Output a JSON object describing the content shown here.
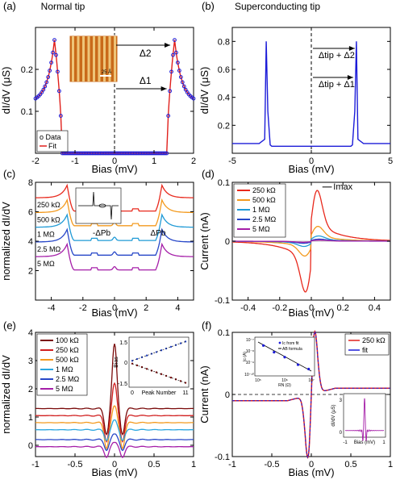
{
  "panels": [
    {
      "id": "a",
      "label": "(a)",
      "title": "Normal tip",
      "xlabel": "Bias (mV)",
      "ylabel": "dI/dV (μS)",
      "xticks": [
        "-2",
        "-1",
        "0",
        "1",
        "2"
      ],
      "yticks": [
        "0.1",
        "0.2"
      ],
      "legend": [
        "o Data",
        "Fit"
      ],
      "annotations": [
        "Δ2",
        "Δ1"
      ],
      "inset_labels": [
        "25 Å"
      ]
    },
    {
      "id": "b",
      "label": "(b)",
      "title": "Superconducting tip",
      "xlabel": "Bias (mV)",
      "ylabel": "dI/dV (μS)",
      "xticks": [
        "-5",
        "0",
        "5"
      ],
      "yticks": [
        "0.2",
        "0.4",
        "0.6",
        "0.8"
      ],
      "annotations": [
        "Δtip + Δ2",
        "Δtip + Δ1"
      ]
    },
    {
      "id": "c",
      "label": "(c)",
      "xlabel": "Bias (mV)",
      "ylabel": "normalized dI/dV",
      "xticks": [
        "-4",
        "-2",
        "0",
        "2",
        "4"
      ],
      "yticks": [
        "2",
        "4",
        "6",
        "8"
      ],
      "legend": [
        "250 kΩ",
        "500 kΩ",
        "1 MΩ",
        "2.5 MΩ",
        "5 MΩ"
      ],
      "annotations": [
        "-ΔPb",
        "ΔPb"
      ]
    },
    {
      "id": "d",
      "label": "(d)",
      "xlabel": "Bias (mV)",
      "ylabel": "Current (nA)",
      "xticks": [
        "-0.4",
        "-0.2",
        "0",
        "0.2",
        "0.4"
      ],
      "yticks": [
        "-0.1",
        "0",
        "0.1"
      ],
      "legend": [
        "250 kΩ",
        "500 kΩ",
        "1 MΩ",
        "2.5 MΩ",
        "5 MΩ"
      ],
      "annotations": [
        "Imax"
      ]
    },
    {
      "id": "e",
      "label": "(e)",
      "xlabel": "Bias (mV)",
      "ylabel": "normalized dI/dV",
      "xticks": [
        "-1",
        "-0.5",
        "0",
        "0.5",
        "1"
      ],
      "yticks": [
        "0",
        "1",
        "2",
        "3",
        "4"
      ],
      "legend": [
        "100 kΩ",
        "250 kΩ",
        "500 kΩ",
        "1 MΩ",
        "2.5 MΩ",
        "5 MΩ"
      ],
      "inset": {
        "xlabel": "Peak Number",
        "ylabel": "Bias",
        "xticks": [
          "0",
          "11"
        ],
        "yticks": [
          "1.5",
          "0",
          "-1.5"
        ]
      }
    },
    {
      "id": "f",
      "label": "(f)",
      "xlabel": "Bias (mV)",
      "ylabel": "Current (nA)",
      "xticks": [
        "-1",
        "-0.5",
        "0",
        "0.5",
        "1"
      ],
      "yticks": [
        "-0.1",
        "0",
        "0.1"
      ],
      "legend": [
        "250 kΩ",
        "fit"
      ],
      "inset1": {
        "xlabel": "RN (Ω)",
        "ylabel": "Ic (A)",
        "legend": [
          "Ic from fit",
          "AB formula"
        ],
        "xticks": [
          "10⁵",
          "10⁶",
          "10⁷"
        ],
        "yticks": [
          "10⁻⁷",
          "10⁻⁸",
          "10⁻⁹",
          "10⁻¹⁰"
        ]
      },
      "inset2": {
        "xlabel": "Bias (mV)",
        "ylabel": "dI/dV (μS)",
        "xticks": [
          "-1",
          "1"
        ],
        "yticks": [
          "3",
          "0"
        ]
      }
    }
  ],
  "colors": {
    "data_blue": "#1c1cd8",
    "fit_red": "#e0201c",
    "c_series": [
      "#e8281c",
      "#f39a1e",
      "#1f9ad6",
      "#2747c8",
      "#a51ea8"
    ],
    "d_series": [
      "#e8281c",
      "#f39a1e",
      "#1f9ad6",
      "#2747c8",
      "#a51ea8"
    ],
    "e_series": [
      "#7a0a0a",
      "#d11f1f",
      "#f39a1e",
      "#2aa6e0",
      "#2747c8",
      "#a51ea8"
    ]
  },
  "chart_data": [
    {
      "panel": "a",
      "type": "line",
      "x_range": [
        -2,
        2
      ],
      "ylim": [
        0,
        0.3
      ],
      "series": [
        {
          "name": "Data",
          "x": [
            -2,
            -1.9,
            -1.8,
            -1.7,
            -1.6,
            -1.52,
            -1.46,
            -1.4,
            -1.36,
            -1.34,
            -1.3,
            -1.2,
            -1.0,
            -0.5,
            0,
            0.5,
            1.0,
            1.2,
            1.3,
            1.34,
            1.36,
            1.4,
            1.46,
            1.52,
            1.6,
            1.7,
            1.8,
            1.9,
            2
          ],
          "y": [
            0.125,
            0.135,
            0.15,
            0.17,
            0.21,
            0.27,
            0.24,
            0.2,
            0.09,
            0,
            0,
            0,
            0,
            0,
            0,
            0,
            0,
            0,
            0,
            0,
            0.09,
            0.2,
            0.24,
            0.27,
            0.21,
            0.17,
            0.15,
            0.135,
            0.125
          ]
        }
      ]
    },
    {
      "panel": "b",
      "type": "line",
      "x_range": [
        -5,
        5
      ],
      "ylim": [
        0,
        0.9
      ],
      "series": [
        {
          "name": "",
          "x": [
            -5,
            -3.3,
            -2.95,
            -2.85,
            -2.75,
            -2.6,
            -2.5,
            0,
            2.5,
            2.6,
            2.75,
            2.85,
            2.95,
            3.3,
            5
          ],
          "y": [
            0.07,
            0.07,
            0.1,
            0.8,
            0.3,
            0.06,
            0.05,
            0.05,
            0.05,
            0.06,
            0.3,
            0.8,
            0.1,
            0.07,
            0.07
          ]
        }
      ]
    },
    {
      "panel": "c",
      "type": "line",
      "x_range": [
        -5,
        5
      ],
      "ylim": [
        0,
        8
      ],
      "series": [
        {
          "name": "250 kΩ",
          "offset": 6
        },
        {
          "name": "500 kΩ",
          "offset": 5
        },
        {
          "name": "1 MΩ",
          "offset": 4
        },
        {
          "name": "2.5 MΩ",
          "offset": 3
        },
        {
          "name": "5 MΩ",
          "offset": 2
        }
      ]
    },
    {
      "panel": "d",
      "type": "line",
      "x_range": [
        -0.5,
        0.5
      ],
      "ylim": [
        -0.1,
        0.1
      ],
      "series": [
        {
          "name": "250 kΩ",
          "amplitude": 0.095
        },
        {
          "name": "500 kΩ",
          "amplitude": 0.028
        },
        {
          "name": "1 MΩ",
          "amplitude": 0.01
        },
        {
          "name": "2.5 MΩ",
          "amplitude": 0.004
        },
        {
          "name": "5 MΩ",
          "amplitude": 0.002
        }
      ]
    },
    {
      "panel": "e",
      "type": "line",
      "x_range": [
        -1,
        1
      ],
      "ylim": [
        -0.4,
        4
      ],
      "series": [
        {
          "name": "100 kΩ",
          "baseline": 1.3,
          "peak": 3.6
        },
        {
          "name": "250 kΩ",
          "baseline": 1.05,
          "peak": 2.2
        },
        {
          "name": "500 kΩ",
          "baseline": 0.8,
          "peak": 1.4
        },
        {
          "name": "1 MΩ",
          "baseline": 0.55,
          "peak": 0.9
        },
        {
          "name": "2.5 MΩ",
          "baseline": 0.2,
          "peak": 0.4
        },
        {
          "name": "5 MΩ",
          "baseline": -0.05,
          "peak": 0.1
        }
      ]
    },
    {
      "panel": "f",
      "type": "line",
      "x_range": [
        -1,
        1
      ],
      "ylim": [
        -0.1,
        0.1
      ],
      "series": [
        {
          "name": "250 kΩ"
        },
        {
          "name": "fit"
        }
      ]
    }
  ]
}
